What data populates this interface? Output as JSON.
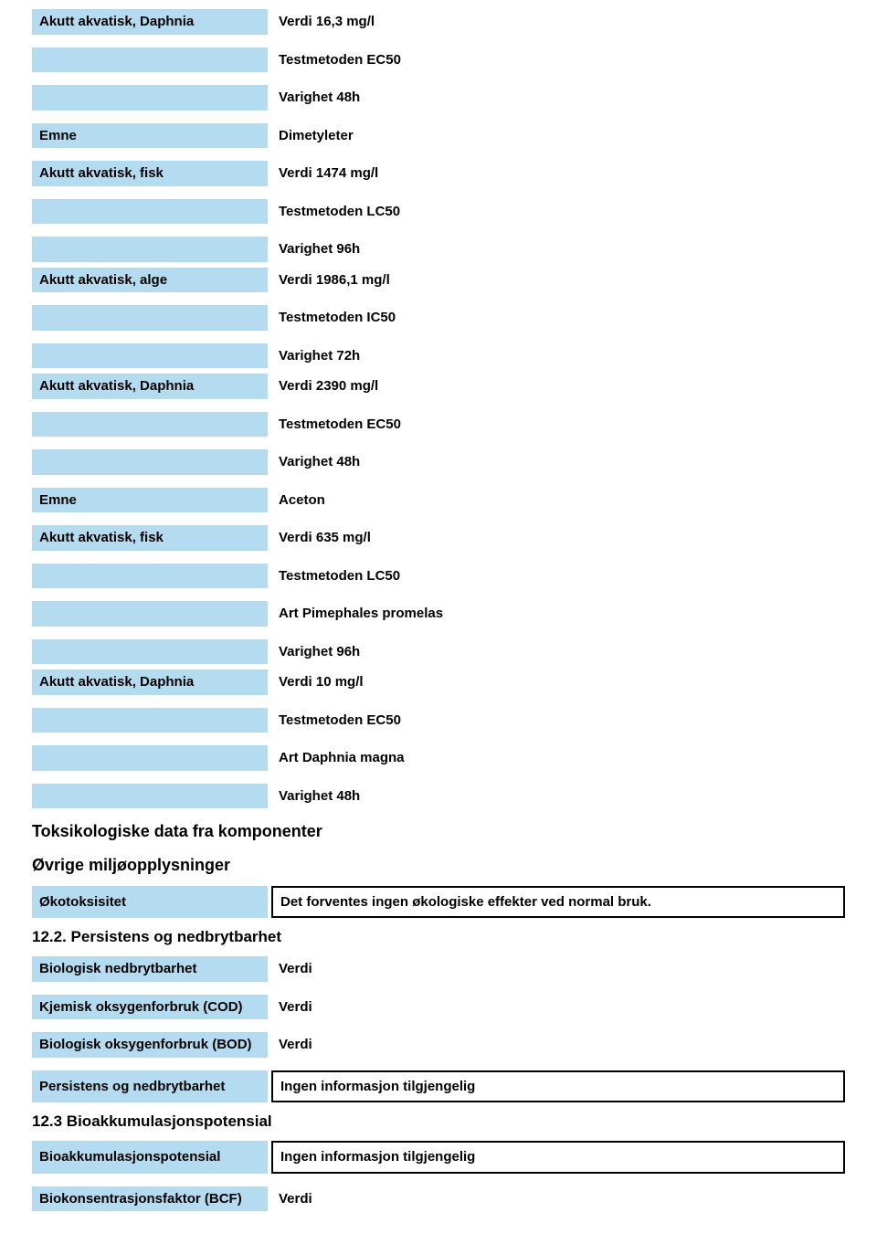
{
  "section1": {
    "daphnia": {
      "label": "Akutt akvatisk, Daphnia",
      "verdi": "Verdi  16,3 mg/l",
      "testmetoden": "Testmetoden    EC50",
      "varighet": "Varighet   48h"
    }
  },
  "dimetyleter": {
    "emne_label": "Emne",
    "emne_value": "Dimetyleter",
    "fisk": {
      "label": "Akutt akvatisk, fisk",
      "verdi": "Verdi  1474 mg/l",
      "testmetoden": "Testmetoden    LC50",
      "varighet": "Varighet   96h"
    },
    "alge": {
      "label": "Akutt akvatisk, alge",
      "verdi": "Verdi  1986,1 mg/l",
      "testmetoden": "Testmetoden    IC50",
      "varighet": "Varighet   72h"
    },
    "daphnia": {
      "label": "Akutt akvatisk, Daphnia",
      "verdi": "Verdi  2390 mg/l",
      "testmetoden": "Testmetoden    EC50",
      "varighet": "Varighet   48h"
    }
  },
  "aceton": {
    "emne_label": "Emne",
    "emne_value": "Aceton",
    "fisk": {
      "label": "Akutt akvatisk, fisk",
      "verdi": "Verdi  635 mg/l",
      "testmetoden": "Testmetoden    LC50",
      "art": "Art Pimephales promelas",
      "varighet": "Varighet   96h"
    },
    "daphnia": {
      "label": "Akutt akvatisk, Daphnia",
      "verdi": "Verdi  10 mg/l",
      "testmetoden": "Testmetoden    EC50",
      "art": "Art Daphnia magna",
      "varighet": "Varighet   48h"
    }
  },
  "headings": {
    "tox_komponenter": "Toksikologiske data fra komponenter",
    "ovrige": "Øvrige miljøopplysninger",
    "persistens": "12.2. Persistens og nedbrytbarhet",
    "bioakk": "12.3 Bioakkumulasjonspotensial"
  },
  "okotoksisitet": {
    "label": "Økotoksisitet",
    "value": "Det forventes ingen økologiske effekter ved normal bruk."
  },
  "biologisk_nedbrytbarhet": {
    "label": "Biologisk nedbrytbarhet",
    "value": "Verdi"
  },
  "cod": {
    "label": "Kjemisk oksygenforbruk (COD)",
    "value": "Verdi"
  },
  "bod": {
    "label": "Biologisk oksygenforbruk (BOD)",
    "value": "Verdi"
  },
  "persistens_ned": {
    "label": "Persistens og nedbrytbarhet",
    "value": "Ingen informasjon tilgjengelig"
  },
  "bioakk_pot": {
    "label": "Bioakkumulasjonspotensial",
    "value": "Ingen informasjon tilgjengelig"
  },
  "bcf": {
    "label": "Biokonsentrasjonsfaktor (BCF)",
    "value": "Verdi"
  }
}
